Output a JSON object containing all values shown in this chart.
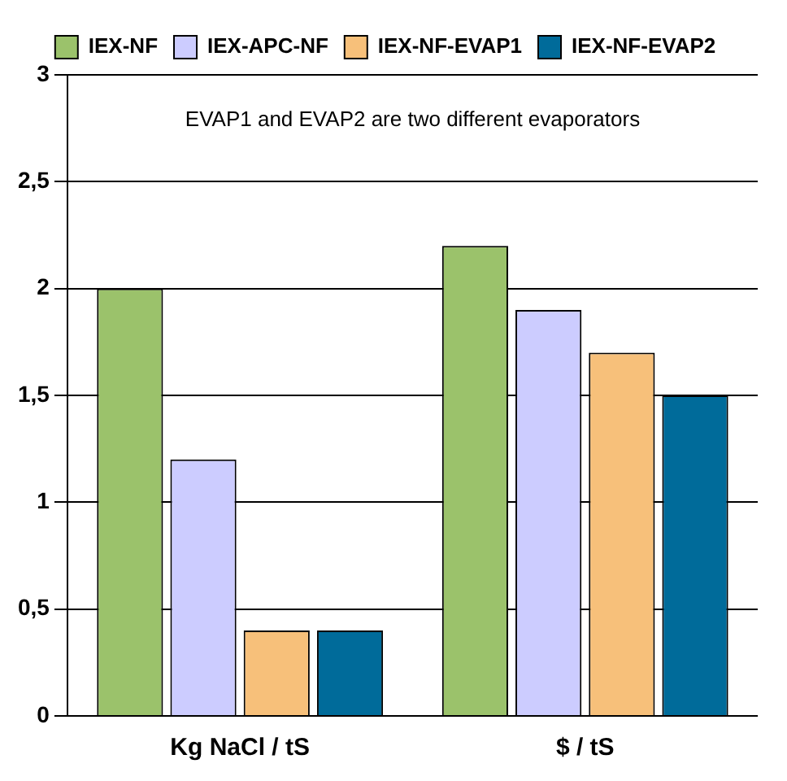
{
  "chart_data": {
    "type": "bar",
    "categories": [
      "Kg NaCl / tS",
      "$ / tS"
    ],
    "series": [
      {
        "name": "IEX-NF",
        "color": "#9bc26b",
        "values": [
          2,
          2.2
        ]
      },
      {
        "name": "IEX-APC-NF",
        "color": "#ccccff",
        "values": [
          1.2,
          1.9
        ]
      },
      {
        "name": "IEX-NF-EVAP1",
        "color": "#f7c07a",
        "values": [
          0.4,
          1.7
        ]
      },
      {
        "name": "IEX-NF-EVAP2",
        "color": "#006b9a",
        "values": [
          0.4,
          1.5
        ]
      }
    ],
    "ylim": [
      0,
      3
    ],
    "yticks": [
      0,
      {
        "value": 0.5,
        "label": "0,5"
      },
      1,
      {
        "value": 1.5,
        "label": "1,5"
      },
      2,
      {
        "value": 2.5,
        "label": "2,5"
      },
      3
    ],
    "grid": "y",
    "legend": "top",
    "annotations": [
      "EVAP1 and EVAP2 are two different evaporators"
    ]
  }
}
